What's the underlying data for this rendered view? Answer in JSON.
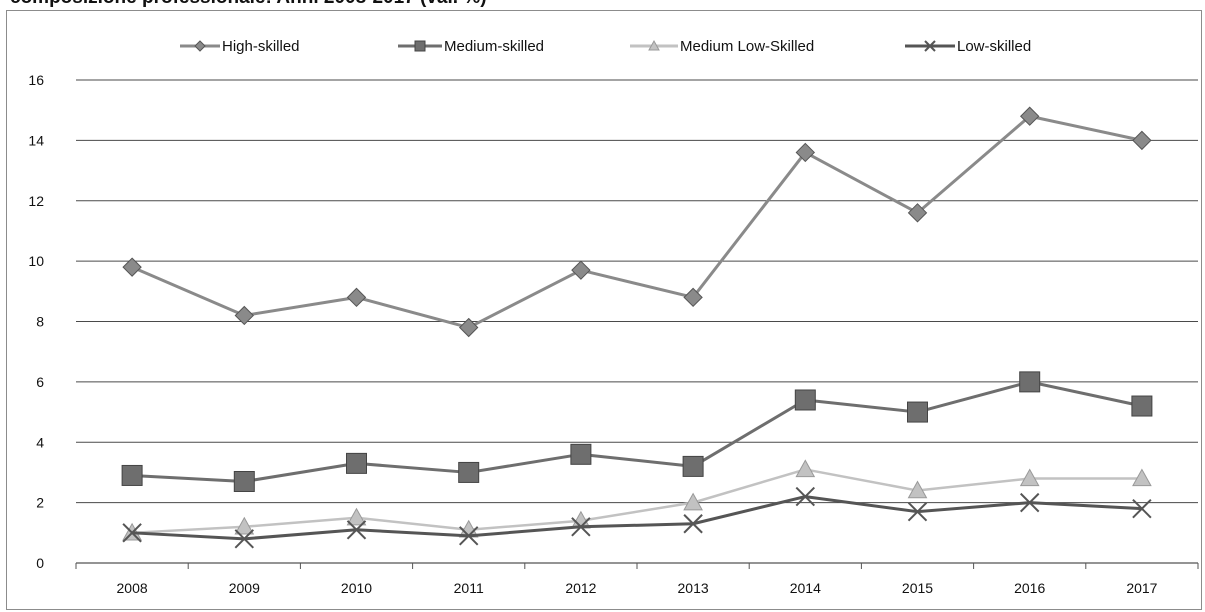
{
  "page_title": "composizione professionale: Anni 2008-2017 (val. %)",
  "chart_data": {
    "type": "line",
    "title": "",
    "xlabel": "",
    "ylabel": "",
    "x": [
      "2008",
      "2009",
      "2010",
      "2011",
      "2012",
      "2013",
      "2014",
      "2015",
      "2016",
      "2017"
    ],
    "ylim": [
      0,
      16
    ],
    "yticks": [
      0,
      2,
      4,
      6,
      8,
      10,
      12,
      14,
      16
    ],
    "grid": "horizontal",
    "legend_position": "top",
    "series": [
      {
        "name": "High-skilled",
        "values": [
          9.8,
          8.2,
          8.8,
          7.8,
          9.7,
          8.8,
          13.6,
          11.6,
          14.8,
          14.0
        ],
        "color": "#8a8a8a",
        "marker": "diamond"
      },
      {
        "name": "Medium-skilled",
        "values": [
          2.9,
          2.7,
          3.3,
          3.0,
          3.6,
          3.2,
          5.4,
          5.0,
          6.0,
          5.2
        ],
        "color": "#6e6e6e",
        "marker": "square"
      },
      {
        "name": "Medium Low-Skilled",
        "values": [
          1.0,
          1.2,
          1.5,
          1.1,
          1.4,
          2.0,
          3.1,
          2.4,
          2.8,
          2.8
        ],
        "color": "#c2c2c2",
        "marker": "triangle"
      },
      {
        "name": "Low-skilled",
        "values": [
          1.0,
          0.8,
          1.1,
          0.9,
          1.2,
          1.3,
          2.2,
          1.7,
          2.0,
          1.8
        ],
        "color": "#555555",
        "marker": "x"
      }
    ]
  }
}
